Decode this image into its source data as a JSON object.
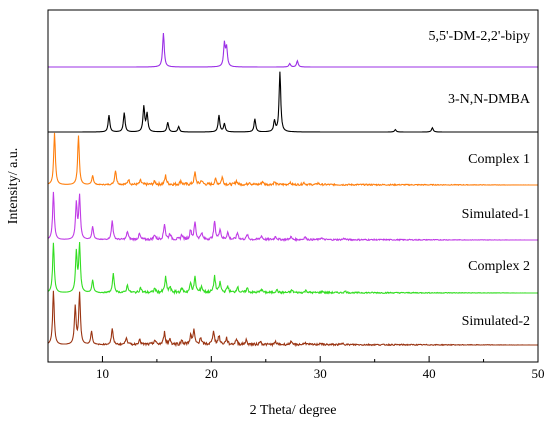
{
  "chart_data": {
    "type": "line",
    "title": "",
    "xlabel": "2 Theta/ degree",
    "ylabel": "Intensity/ a.u.",
    "xlim": [
      5,
      50
    ],
    "xticks": [
      10,
      15,
      20,
      25,
      30,
      35,
      40,
      45,
      50
    ],
    "tick_labels": [
      "10",
      "20",
      "30",
      "40",
      "50"
    ],
    "y_tick_labels": false,
    "grid": false,
    "legend": "inline labels at right of each trace",
    "series": [
      {
        "name": "5,5'-DM-2,2'-bipy",
        "color": "#9b30e6",
        "peaks": [
          [
            15.6,
            1.0
          ],
          [
            21.2,
            0.68
          ],
          [
            21.4,
            0.55
          ],
          [
            27.2,
            0.1
          ],
          [
            27.9,
            0.18
          ]
        ]
      },
      {
        "name": "3-N,N-DMBA",
        "color": "#000000",
        "peaks": [
          [
            10.6,
            0.28
          ],
          [
            12.0,
            0.32
          ],
          [
            13.8,
            0.42
          ],
          [
            14.1,
            0.3
          ],
          [
            16.0,
            0.16
          ],
          [
            17.0,
            0.09
          ],
          [
            20.7,
            0.28
          ],
          [
            21.2,
            0.14
          ],
          [
            24.0,
            0.22
          ],
          [
            25.8,
            0.18
          ],
          [
            26.3,
            1.0
          ],
          [
            36.9,
            0.04
          ],
          [
            40.3,
            0.07
          ]
        ]
      },
      {
        "name": "Complex 1",
        "color": "#ff7f0e",
        "peaks": [
          [
            5.6,
            1.0
          ],
          [
            7.8,
            0.95
          ],
          [
            9.1,
            0.18
          ],
          [
            11.2,
            0.28
          ],
          [
            12.4,
            0.1
          ],
          [
            13.5,
            0.08
          ],
          [
            14.8,
            0.06
          ],
          [
            15.8,
            0.17
          ],
          [
            17.2,
            0.07
          ],
          [
            18.5,
            0.23
          ],
          [
            19.1,
            0.08
          ],
          [
            20.4,
            0.1
          ],
          [
            21.0,
            0.14
          ],
          [
            22.3,
            0.07
          ],
          [
            23.5,
            0.05
          ],
          [
            24.7,
            0.06
          ],
          [
            25.8,
            0.05
          ],
          [
            27.2,
            0.04
          ],
          [
            28.5,
            0.04
          ],
          [
            29.8,
            0.03
          ]
        ]
      },
      {
        "name": "Simulated-1",
        "color": "#c03ce6",
        "peaks": [
          [
            5.5,
            1.0
          ],
          [
            7.6,
            0.75
          ],
          [
            7.9,
            0.9
          ],
          [
            9.1,
            0.28
          ],
          [
            10.9,
            0.4
          ],
          [
            12.3,
            0.17
          ],
          [
            13.4,
            0.12
          ],
          [
            14.8,
            0.1
          ],
          [
            15.7,
            0.33
          ],
          [
            16.2,
            0.12
          ],
          [
            17.3,
            0.1
          ],
          [
            18.1,
            0.2
          ],
          [
            18.5,
            0.36
          ],
          [
            19.1,
            0.14
          ],
          [
            20.3,
            0.38
          ],
          [
            20.8,
            0.22
          ],
          [
            21.5,
            0.15
          ],
          [
            22.4,
            0.14
          ],
          [
            23.3,
            0.1
          ],
          [
            24.6,
            0.08
          ],
          [
            25.9,
            0.07
          ],
          [
            27.3,
            0.06
          ],
          [
            28.6,
            0.06
          ],
          [
            30.1,
            0.04
          ],
          [
            32.2,
            0.03
          ]
        ]
      },
      {
        "name": "Complex 2",
        "color": "#33dd22",
        "peaks": [
          [
            5.5,
            1.0
          ],
          [
            7.6,
            0.8
          ],
          [
            7.9,
            0.95
          ],
          [
            9.1,
            0.25
          ],
          [
            11.0,
            0.38
          ],
          [
            12.3,
            0.15
          ],
          [
            13.5,
            0.1
          ],
          [
            14.8,
            0.08
          ],
          [
            15.8,
            0.3
          ],
          [
            16.2,
            0.1
          ],
          [
            17.3,
            0.08
          ],
          [
            18.1,
            0.18
          ],
          [
            18.5,
            0.3
          ],
          [
            19.1,
            0.12
          ],
          [
            20.3,
            0.33
          ],
          [
            20.8,
            0.2
          ],
          [
            21.5,
            0.13
          ],
          [
            22.4,
            0.12
          ],
          [
            23.3,
            0.09
          ],
          [
            24.6,
            0.07
          ],
          [
            26.0,
            0.06
          ],
          [
            27.4,
            0.05
          ],
          [
            28.7,
            0.05
          ],
          [
            30.2,
            0.03
          ],
          [
            32.3,
            0.03
          ]
        ]
      },
      {
        "name": "Simulated-2",
        "color": "#9a3412",
        "peaks": [
          [
            5.5,
            1.0
          ],
          [
            7.5,
            0.7
          ],
          [
            7.9,
            0.95
          ],
          [
            9.0,
            0.25
          ],
          [
            10.9,
            0.3
          ],
          [
            12.2,
            0.14
          ],
          [
            13.4,
            0.1
          ],
          [
            14.8,
            0.08
          ],
          [
            15.7,
            0.22
          ],
          [
            16.2,
            0.1
          ],
          [
            17.3,
            0.08
          ],
          [
            18.1,
            0.16
          ],
          [
            18.4,
            0.25
          ],
          [
            19.0,
            0.12
          ],
          [
            20.2,
            0.26
          ],
          [
            20.7,
            0.16
          ],
          [
            21.4,
            0.12
          ],
          [
            22.3,
            0.1
          ],
          [
            23.2,
            0.08
          ],
          [
            24.5,
            0.06
          ],
          [
            25.9,
            0.05
          ],
          [
            27.3,
            0.05
          ],
          [
            28.6,
            0.04
          ],
          [
            30.0,
            0.03
          ],
          [
            32.1,
            0.03
          ]
        ]
      }
    ]
  }
}
